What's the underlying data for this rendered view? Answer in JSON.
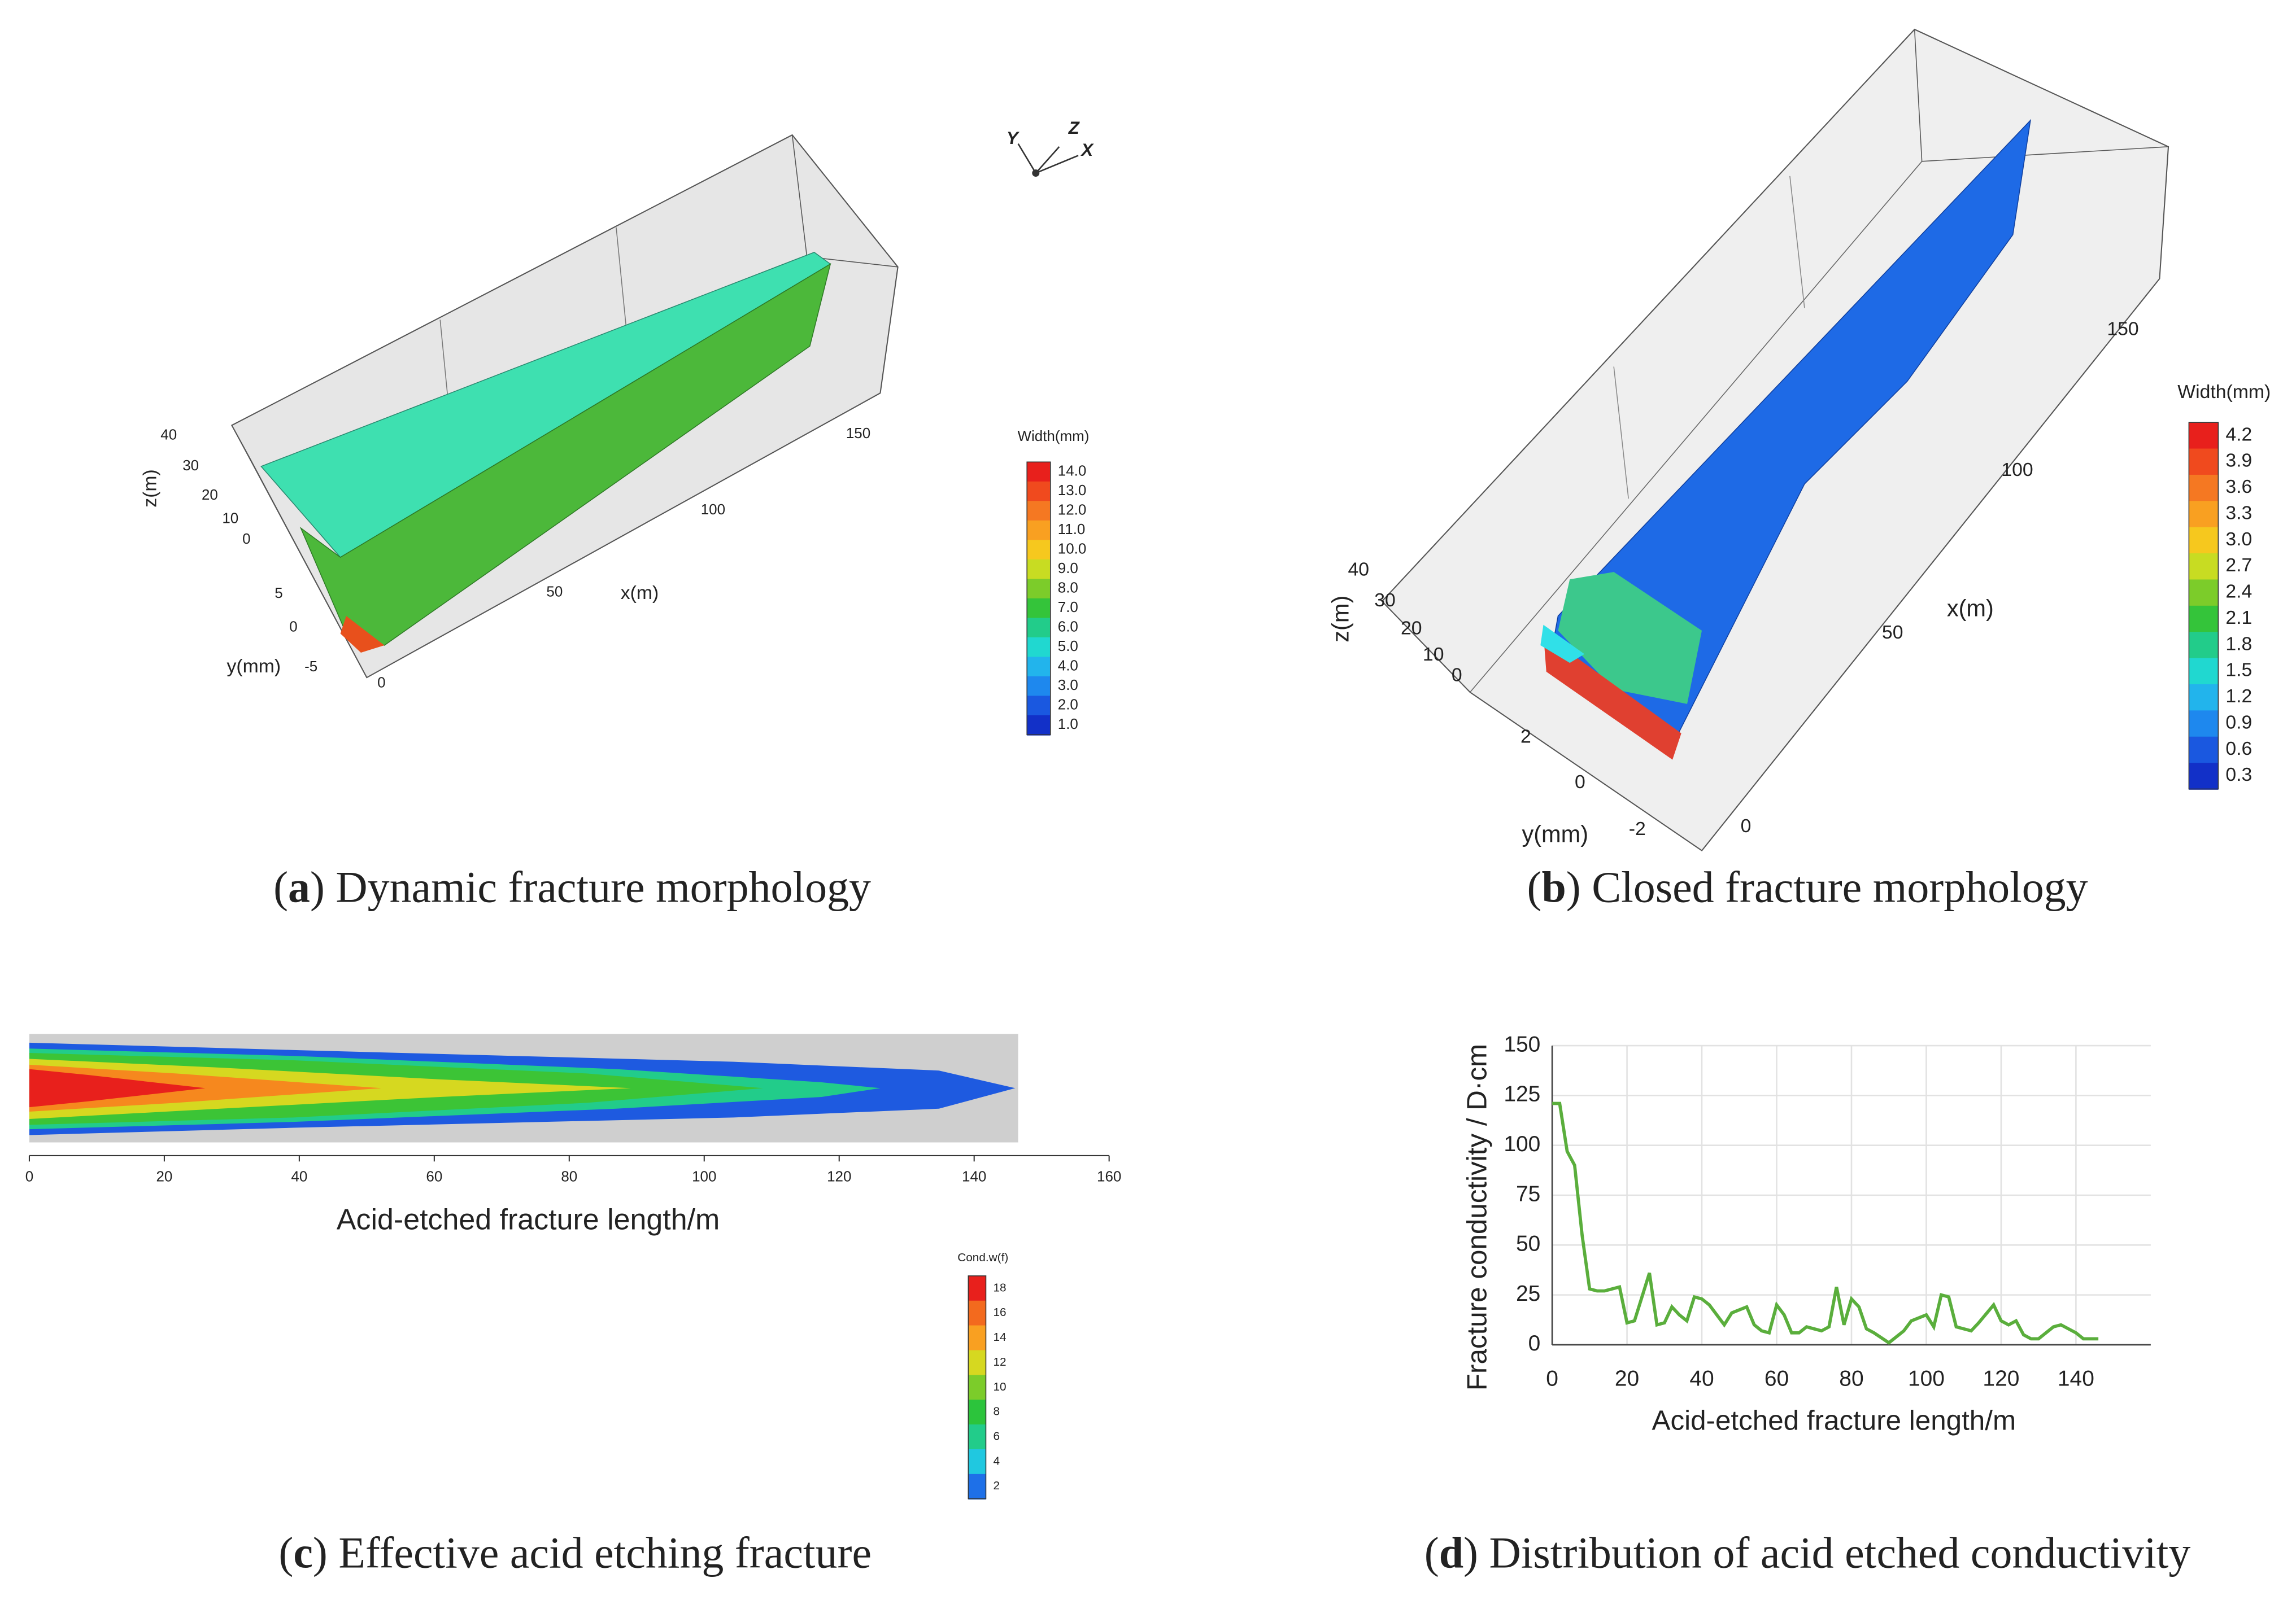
{
  "chart_data": [
    {
      "type": "surface3d",
      "caption_parts": [
        "(",
        "a",
        ") Dynamic fracture morphology"
      ],
      "xlabel": "x(m)",
      "ylabel": "y(mm)",
      "zlabel": "z(m)",
      "xticks": [
        0,
        50,
        100,
        150
      ],
      "yticks": [
        5,
        0,
        -5
      ],
      "zticks": [
        40,
        30,
        20,
        10,
        0
      ],
      "orientation_labels": [
        "Y",
        "Z",
        "X"
      ],
      "colorbar": {
        "title": "Width(mm)",
        "ticks": [
          {
            "value": 14,
            "label": "14.0"
          },
          {
            "value": 13,
            "label": "13.0"
          },
          {
            "value": 12,
            "label": "12.0"
          },
          {
            "value": 11,
            "label": "11.0"
          },
          {
            "value": 10,
            "label": "10.0"
          },
          {
            "value": 9,
            "label": "9.0"
          },
          {
            "value": 8,
            "label": "8.0"
          },
          {
            "value": 7,
            "label": "7.0"
          },
          {
            "value": 6,
            "label": "6.0"
          },
          {
            "value": 5,
            "label": "5.0"
          },
          {
            "value": 4,
            "label": "4.0"
          },
          {
            "value": 3,
            "label": "3.0"
          },
          {
            "value": 2,
            "label": "2.0"
          },
          {
            "value": 1,
            "label": "1.0"
          }
        ],
        "colors": [
          "#e8201c",
          "#f04a1e",
          "#f57822",
          "#f9a021",
          "#f6c81e",
          "#c8dc22",
          "#7ccc2a",
          "#34c43a",
          "#22cc8a",
          "#20d8d0",
          "#22b4ec",
          "#1e88ee",
          "#1a58e0",
          "#1230c8"
        ]
      }
    },
    {
      "type": "surface3d",
      "caption_parts": [
        "(",
        "b",
        ") Closed fracture morphology"
      ],
      "xlabel": "x(m)",
      "ylabel": "y(mm)",
      "zlabel": "z(m)",
      "xticks": [
        0,
        50,
        100,
        150
      ],
      "yticks": [
        2,
        0,
        -2
      ],
      "zticks": [
        40,
        30,
        20,
        10,
        0
      ],
      "colorbar": {
        "title": "Width(mm)",
        "ticks": [
          4.2,
          3.9,
          3.6,
          3.3,
          {
            "value": 3,
            "label": "3.0"
          },
          2.7,
          2.4,
          2.1,
          1.8,
          1.5,
          1.2,
          0.9,
          0.6,
          0.3
        ],
        "colors": [
          "#e8201c",
          "#f04a1e",
          "#f57822",
          "#f9a021",
          "#f6c81e",
          "#c8dc22",
          "#7ccc2a",
          "#34c43a",
          "#22cc8a",
          "#20d8d0",
          "#22b4ec",
          "#1e88ee",
          "#1a58e0",
          "#1230c8"
        ]
      }
    },
    {
      "type": "heatmap",
      "caption_parts": [
        "(",
        "c",
        ") Effective acid etching fracture"
      ],
      "xlabel": "Acid-etched fracture length/m",
      "xlim": [
        0,
        160
      ],
      "xticks": [
        0,
        20,
        40,
        60,
        80,
        100,
        120,
        140,
        160
      ],
      "colorbar": {
        "title": "Cond.w(f)",
        "ticks": [
          18,
          16,
          14,
          12,
          10,
          8,
          6,
          4,
          2
        ],
        "colors": [
          "#e8201c",
          "#f36a1e",
          "#f9a021",
          "#d6d820",
          "#7ccc2a",
          "#2cc43c",
          "#22cc8a",
          "#20c8e0",
          "#1e70e8"
        ]
      }
    },
    {
      "type": "line",
      "caption_parts": [
        "(",
        "d",
        ") Distribution of acid etched conductivity"
      ],
      "xlabel": "Acid-etched fracture length/m",
      "ylabel": "Fracture conductivity / D·cm",
      "xlim": [
        0,
        160
      ],
      "ylim": [
        0,
        150
      ],
      "xticks": [
        0,
        20,
        40,
        60,
        80,
        100,
        120,
        140
      ],
      "yticks": [
        0,
        25,
        50,
        75,
        100,
        125,
        150
      ],
      "grid": true,
      "x": [
        0,
        2,
        4,
        6,
        8,
        10,
        12,
        14,
        18,
        20,
        22,
        26,
        28,
        30,
        32,
        34,
        36,
        38,
        40,
        42,
        46,
        48,
        52,
        54,
        56,
        58,
        60,
        62,
        64,
        66,
        68,
        70,
        72,
        74,
        76,
        78,
        80,
        82,
        84,
        86,
        90,
        94,
        96,
        100,
        102,
        104,
        106,
        108,
        112,
        114,
        118,
        120,
        122,
        124,
        126,
        128,
        130,
        134,
        136,
        140,
        142,
        146
      ],
      "series": [
        {
          "color": "#5aae3c",
          "values": [
            121,
            121,
            97,
            90,
            55,
            28,
            27,
            27,
            29,
            11,
            12,
            36,
            10,
            11,
            19,
            15,
            12,
            24,
            23,
            20,
            10,
            16,
            19,
            10,
            7,
            6,
            20,
            15,
            6,
            6,
            9,
            8,
            7,
            9,
            29,
            10,
            23,
            19,
            8,
            6,
            1,
            7,
            12,
            15,
            9,
            25,
            24,
            9,
            7,
            11,
            20,
            12,
            10,
            12,
            5,
            3,
            3,
            9,
            10,
            6,
            3,
            3
          ]
        }
      ]
    }
  ]
}
